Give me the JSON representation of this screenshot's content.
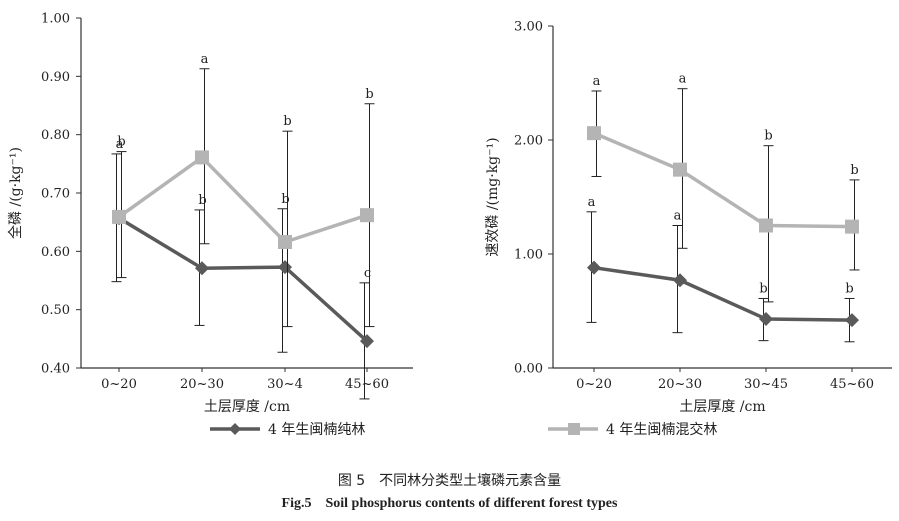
{
  "chart_data": [
    {
      "type": "line",
      "ylabel": "全磷 /(g·kg⁻¹)",
      "xlabel": "土层厚度 /cm",
      "categories": [
        "0~20",
        "20~30",
        "30~4",
        "45~60"
      ],
      "ylim": [
        0.4,
        1.0
      ],
      "yticks": [
        "0.40",
        "0.50",
        "0.60",
        "0.70",
        "0.80",
        "0.90",
        "1.00"
      ],
      "series": [
        {
          "name": "4 年生闽楠纯林",
          "color": "#5a5a5a",
          "marker": "diamond",
          "values": [
            0.657,
            0.571,
            0.573,
            0.446
          ],
          "err_low": [
            0.548,
            0.473,
            0.427,
            0.347
          ],
          "err_high": [
            0.767,
            0.671,
            0.673,
            0.546
          ],
          "letters": [
            "a",
            "b",
            "b",
            "c"
          ]
        },
        {
          "name": "4 年生闽楠混交林",
          "color": "#b4b4b4",
          "marker": "square",
          "values": [
            0.659,
            0.761,
            0.616,
            0.662
          ],
          "err_low": [
            0.555,
            0.613,
            0.471,
            0.471
          ],
          "err_high": [
            0.771,
            0.913,
            0.806,
            0.853
          ],
          "letters": [
            "b",
            "a",
            "b",
            "b"
          ]
        }
      ]
    },
    {
      "type": "line",
      "ylabel": "速效磷 /(mg·kg⁻¹)",
      "xlabel": "土层厚度 /cm",
      "categories": [
        "0~20",
        "20~30",
        "30~45",
        "45~60"
      ],
      "ylim": [
        0.0,
        3.0
      ],
      "yticks": [
        "0.00",
        "1.00",
        "2.00",
        "3.00"
      ],
      "series": [
        {
          "name": "4 年生闽楠纯林",
          "color": "#5a5a5a",
          "marker": "diamond",
          "values": [
            0.88,
            0.77,
            0.43,
            0.42
          ],
          "err_low": [
            0.4,
            0.31,
            0.24,
            0.23
          ],
          "err_high": [
            1.37,
            1.25,
            0.61,
            0.61
          ],
          "letters": [
            "a",
            "a",
            "b",
            "b"
          ]
        },
        {
          "name": "4 年生闽楠混交林",
          "color": "#b4b4b4",
          "marker": "square",
          "values": [
            2.06,
            1.74,
            1.25,
            1.24
          ],
          "err_low": [
            1.68,
            1.05,
            0.58,
            0.86
          ],
          "err_high": [
            2.43,
            2.45,
            1.95,
            1.65
          ],
          "letters": [
            "a",
            "a",
            "b",
            "b"
          ]
        }
      ]
    }
  ],
  "caption": {
    "cn": "图 5　不同林分类型土壤磷元素含量",
    "en": "Fig.5　Soil phosphorus contents of different forest types"
  }
}
